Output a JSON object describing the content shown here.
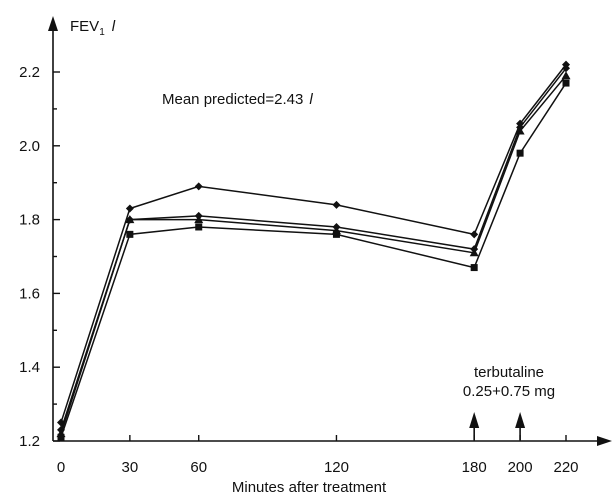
{
  "chart_data": {
    "type": "line",
    "ylabel": "FEV",
    "ylabel_sub": "1",
    "ylabel_unit": "l",
    "xlabel": "Minutes after treatment",
    "annotation": {
      "text": "Mean predicted=2.43",
      "unit": "l"
    },
    "terbutaline": {
      "line1": "terbutaline",
      "line2": "0.25+0.75 mg",
      "arrows_at": [
        180,
        200
      ]
    },
    "x": [
      0,
      30,
      60,
      120,
      180,
      200,
      220
    ],
    "xticks": [
      "0",
      "30",
      "60",
      "120",
      "180",
      "200",
      "220"
    ],
    "yticks": [
      "1.2",
      "1.4",
      "1.6",
      "1.8",
      "2.0",
      "2.2"
    ],
    "xlim": [
      0,
      240
    ],
    "ylim": [
      1.2,
      2.3
    ],
    "series": [
      {
        "marker": "diamond",
        "values": [
          1.25,
          1.83,
          1.89,
          1.84,
          1.76,
          2.06,
          2.22
        ]
      },
      {
        "marker": "diamond",
        "values": [
          1.23,
          1.8,
          1.81,
          1.78,
          1.72,
          2.05,
          2.21
        ]
      },
      {
        "marker": "triangle",
        "values": [
          1.22,
          1.8,
          1.8,
          1.77,
          1.71,
          2.04,
          2.19
        ]
      },
      {
        "marker": "square",
        "values": [
          1.21,
          1.76,
          1.78,
          1.76,
          1.67,
          1.98,
          2.17
        ]
      }
    ]
  }
}
